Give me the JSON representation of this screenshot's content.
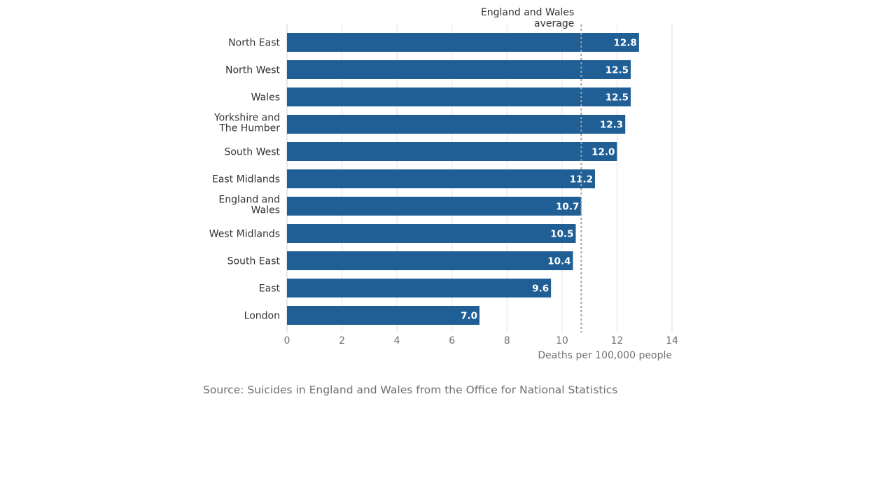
{
  "chart_data": {
    "type": "bar",
    "orientation": "horizontal",
    "categories": [
      [
        "North East"
      ],
      [
        "North West"
      ],
      [
        "Wales"
      ],
      [
        "Yorkshire and",
        "The Humber"
      ],
      [
        "South West"
      ],
      [
        "East Midlands"
      ],
      [
        "England and",
        "Wales"
      ],
      [
        "West Midlands"
      ],
      [
        "South East"
      ],
      [
        "East"
      ],
      [
        "London"
      ]
    ],
    "values": [
      12.8,
      12.5,
      12.5,
      12.3,
      12.0,
      11.2,
      10.7,
      10.5,
      10.4,
      9.6,
      7.0
    ],
    "value_labels": [
      "12.8",
      "12.5",
      "12.5",
      "12.3",
      "12.0",
      "11.2",
      "10.7",
      "10.5",
      "10.4",
      "9.6",
      "7.0"
    ],
    "xlim": [
      0,
      14
    ],
    "xticks": [
      0,
      2,
      4,
      6,
      8,
      10,
      12,
      14
    ],
    "xlabel": "Deaths per 100,000 people",
    "grid": true,
    "bar_color": "#1f5f95",
    "reference_line": {
      "value": 10.7,
      "label_lines": [
        "England and Wales",
        "average"
      ],
      "color": "#a0a0a0"
    }
  },
  "source": "Source: Suicides in England and Wales from the Office for National Statistics"
}
